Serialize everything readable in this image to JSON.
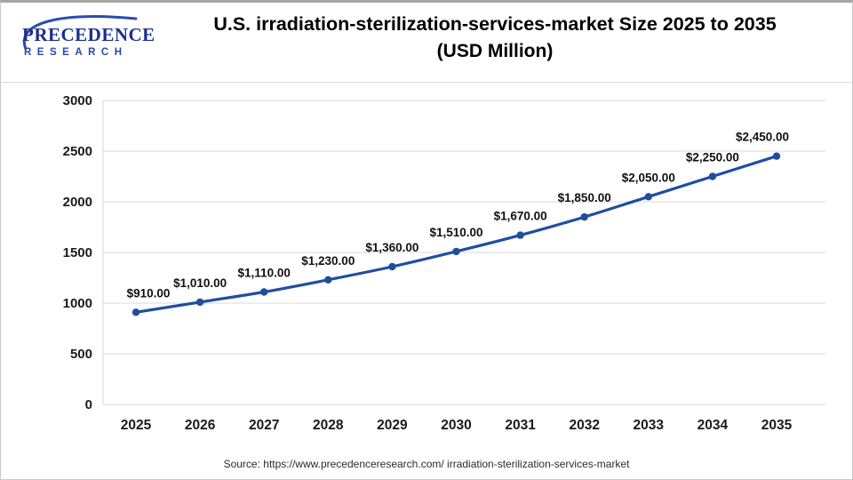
{
  "header": {
    "title_line1": "U.S. irradiation-sterilization-services-market Size 2025 to 2035",
    "title_line2": "(USD Million)",
    "logo_name": "PRECEDENCE",
    "logo_subname": "RESEARCH"
  },
  "footer": {
    "source": "Source: https://www.precedenceresearch.com/ irradiation-sterilization-services-market"
  },
  "chart_data": {
    "type": "line",
    "title": "U.S. irradiation-sterilization-services-market Size 2025 to 2035 (USD Million)",
    "categories": [
      "2025",
      "2026",
      "2027",
      "2028",
      "2029",
      "2030",
      "2031",
      "2032",
      "2033",
      "2034",
      "2035"
    ],
    "values": [
      910,
      1010,
      1110,
      1230,
      1360,
      1510,
      1670,
      1850,
      2050,
      2250,
      2450
    ],
    "point_labels": [
      "$910.00",
      "$1,010.00",
      "$1,110.00",
      "$1,230.00",
      "$1,360.00",
      "$1,510.00",
      "$1,670.00",
      "$1,850.00",
      "$2,050.00",
      "$2,250.00",
      "$2,450.00"
    ],
    "xlabel": "",
    "ylabel": "",
    "ylim": [
      0,
      3000
    ],
    "yticks": [
      0,
      500,
      1000,
      1500,
      2000,
      2500,
      3000
    ],
    "grid": true,
    "legend": "none",
    "line_color": "#1f4e9e",
    "marker": "circle",
    "grid_color": "#d9d9d9",
    "label_color": "#111111"
  }
}
